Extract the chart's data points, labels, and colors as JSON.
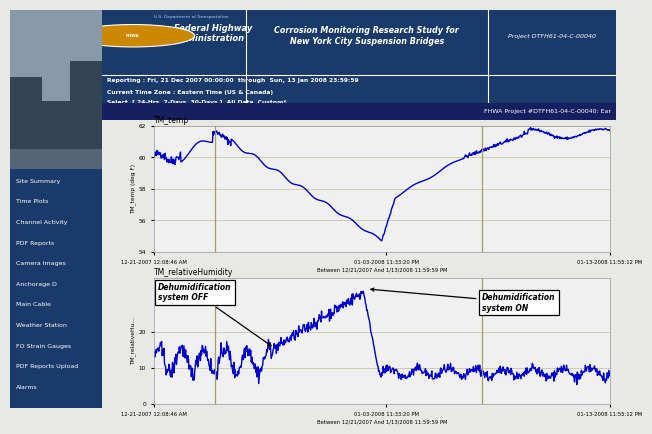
{
  "title_main": "Corrosion Monitoring Research Study for\nNew York City Suspension Bridges",
  "project_id": "Project DTFH61-04-C-00040",
  "reporting": "Reporting : Fri, 21 Dec 2007 00:00:00  through  Sun, 13 Jan 2008 23:59:59",
  "timezone": "Current Time Zone : Eastern Time (US & Canada)",
  "select": "Select  [ 24-Hrs  7-Days  30-Days ]  All Data  Custom*",
  "fhwa_project": "FHWA Project #DTFH61-04-C-00040: Ear",
  "nav_items": [
    "Site Summary",
    "Time Plots",
    "Channel Activity",
    "PDF Reports",
    "Camera Images",
    "Anchorage D",
    "Main Cable",
    "Weather Station",
    "FO Strain Gauges",
    "PDF Reports Upload",
    "Alarms"
  ],
  "temp_title": "TM_temp",
  "temp_ylabel": "TM_temp (deg F)",
  "temp_ylim": [
    54,
    62
  ],
  "temp_yticks": [
    54,
    56,
    58,
    60,
    62
  ],
  "humid_title": "TM_relativeHumidity",
  "humid_ylabel": "TM_relativeHu...",
  "humid_ylim": [
    0,
    35
  ],
  "humid_yticks": [
    0,
    10,
    20
  ],
  "xticklabels": [
    "12-21-2007 12:08:46 AM",
    "01-03-2008 11:33:20 PM",
    "01-13-2008 11:55:12 PM"
  ],
  "xlabel_center": "Between 12/21/2007 And 1/13/2008 11:59:59 PM",
  "header_bg": "#1a3a6b",
  "nav_bg": "#1a3a6b",
  "plot_bg": "#f0f0f0",
  "grid_color": "#c8c8a0",
  "line_color": "#0000cc",
  "vline_color": "#a0a060",
  "line_width": 1.0,
  "annotation_text_off": "Dehumidification\nsystem OFF",
  "annotation_text_on": "Dehumidification\nsystem ON",
  "content_bg": "#e8e8e4"
}
